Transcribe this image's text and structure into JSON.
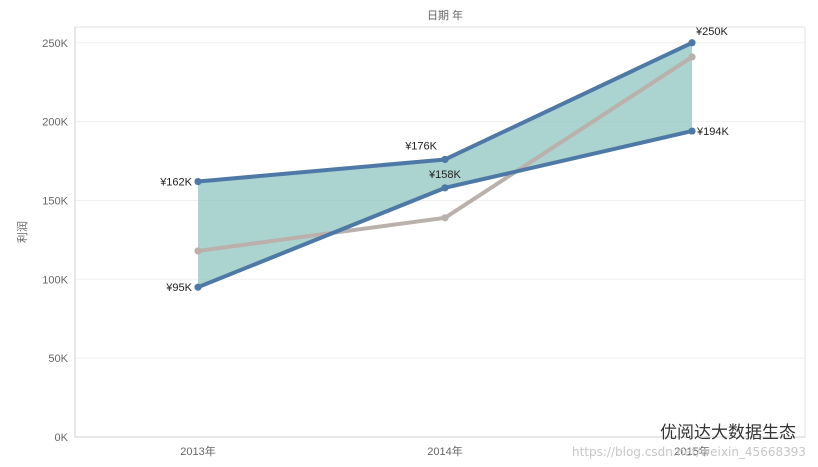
{
  "chart_data": {
    "type": "line",
    "title": "",
    "xlabel": "日期 年",
    "ylabel": "利润",
    "categories": [
      "2013年",
      "2014年",
      "2015年"
    ],
    "ylim": [
      0,
      260000
    ],
    "yticks": [
      0,
      50000,
      100000,
      150000,
      200000,
      250000
    ],
    "ytick_labels": [
      "0K",
      "50K",
      "100K",
      "150K",
      "200K",
      "250K"
    ],
    "grid": true,
    "legend": "none",
    "series": [
      {
        "values": [
          162000,
          176000,
          250000
        ],
        "color": "#4e79a7",
        "labels": [
          "¥162K",
          "¥176K",
          "¥250K"
        ]
      },
      {
        "values": [
          95000,
          158000,
          194000
        ],
        "color": "#4e79a7",
        "labels": [
          "¥95K",
          "¥158K",
          "¥194K"
        ]
      },
      {
        "values": [
          118000,
          139000,
          241000
        ],
        "color": "#bab0ac"
      }
    ],
    "band": {
      "between_series": [
        0,
        1
      ],
      "color": "#8fc4bf"
    }
  },
  "watermark": {
    "text": "优阅达大数据生态",
    "url": "https://blog.csdn.net/weixin_45668393"
  }
}
